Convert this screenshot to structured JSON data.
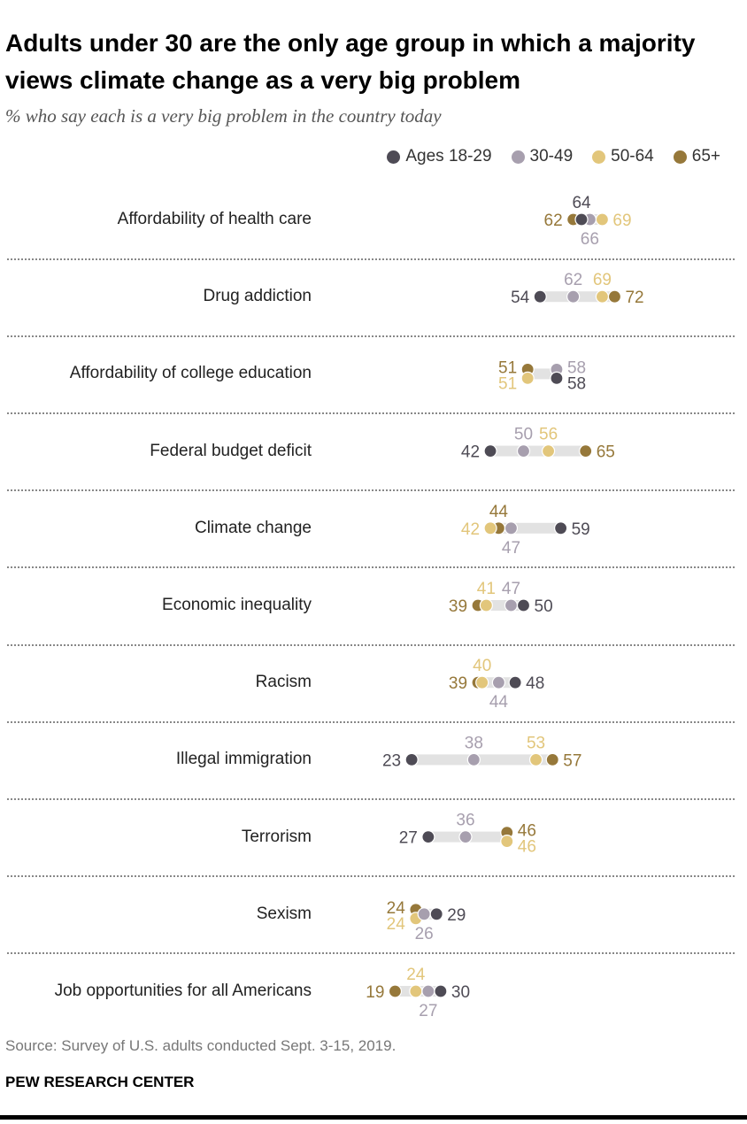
{
  "title": "Adults under 30 are the only age group in which a majority views climate change as a very big problem",
  "subtitle": "% who say each is a very big problem in the country today",
  "source": "Source: Survey of U.S. adults conducted Sept. 3-15, 2019.",
  "brand": "PEW RESEARCH CENTER",
  "chart_data": {
    "type": "dot",
    "title": "Adults under 30 are the only age group in which a majority views climate change as a very big problem",
    "subtitle": "% who say each is a very big problem in the country today",
    "legend_placement": "top-right",
    "grid": false,
    "categories": [
      "Affordability of health care",
      "Drug addiction",
      "Affordability of college education",
      "Federal budget deficit",
      "Climate change",
      "Economic inequality",
      "Racism",
      "Illegal immigration",
      "Terrorism",
      "Sexism",
      "Job opportunities for all Americans"
    ],
    "series": [
      {
        "name": "Ages 18-29",
        "color": "#4e4b55",
        "values": [
          64,
          54,
          58,
          42,
          59,
          50,
          48,
          23,
          27,
          29,
          30
        ]
      },
      {
        "name": "30-49",
        "color": "#a79fae",
        "values": [
          66,
          62,
          58,
          50,
          47,
          47,
          44,
          38,
          36,
          26,
          27
        ]
      },
      {
        "name": "50-64",
        "color": "#e2c67b",
        "values": [
          69,
          69,
          51,
          56,
          42,
          41,
          40,
          53,
          46,
          24,
          24
        ]
      },
      {
        "name": "65+",
        "color": "#96783a",
        "values": [
          62,
          72,
          51,
          65,
          44,
          39,
          39,
          57,
          46,
          24,
          19
        ]
      }
    ]
  }
}
